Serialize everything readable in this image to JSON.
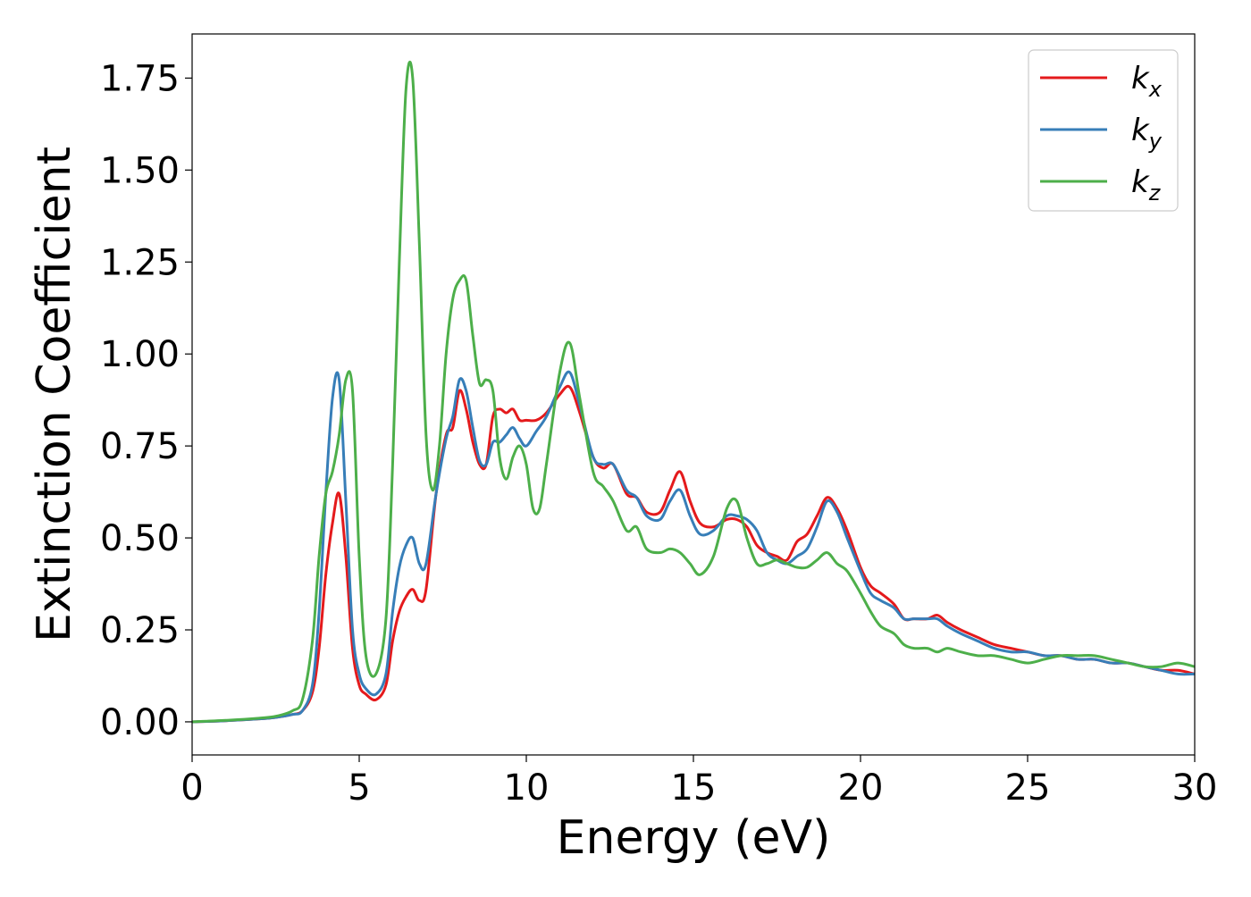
{
  "chart_data": {
    "type": "line",
    "title": "",
    "xlabel": "Energy (eV)",
    "ylabel": "Extinction Coefficient",
    "xlim": [
      0,
      30
    ],
    "ylim": [
      -0.09,
      1.87
    ],
    "xticks": [
      0,
      5,
      10,
      15,
      20,
      25,
      30
    ],
    "xtick_labels": [
      "0",
      "5",
      "10",
      "15",
      "20",
      "25",
      "30"
    ],
    "yticks": [
      0.0,
      0.25,
      0.5,
      0.75,
      1.0,
      1.25,
      1.5,
      1.75
    ],
    "ytick_labels": [
      "0.00",
      "0.25",
      "0.50",
      "0.75",
      "1.00",
      "1.25",
      "1.50",
      "1.75"
    ],
    "grid": false,
    "legend_position": "top-right",
    "series": [
      {
        "name": "k",
        "subscript": "x",
        "color": "#e41a1c",
        "x": [
          0,
          1,
          2,
          2.5,
          3,
          3.3,
          3.6,
          3.8,
          4.0,
          4.2,
          4.4,
          4.6,
          4.8,
          5.0,
          5.2,
          5.5,
          5.8,
          6.0,
          6.2,
          6.4,
          6.6,
          6.8,
          7.0,
          7.3,
          7.6,
          7.8,
          8.0,
          8.2,
          8.4,
          8.6,
          8.8,
          9.0,
          9.2,
          9.4,
          9.6,
          9.8,
          10.0,
          10.3,
          10.6,
          11.0,
          11.3,
          11.6,
          12.0,
          12.3,
          12.6,
          13.0,
          13.3,
          13.6,
          14.0,
          14.3,
          14.6,
          14.9,
          15.2,
          15.6,
          16.0,
          16.3,
          16.6,
          16.9,
          17.2,
          17.5,
          17.8,
          18.1,
          18.4,
          18.7,
          19.0,
          19.3,
          19.6,
          20.0,
          20.3,
          20.6,
          21.0,
          21.3,
          21.6,
          22.0,
          22.3,
          22.6,
          23.0,
          23.5,
          24.0,
          24.5,
          25.0,
          25.5,
          26.0,
          26.5,
          27.0,
          27.5,
          28.0,
          28.5,
          29.0,
          29.5,
          30.0
        ],
        "y": [
          0.0,
          0.003,
          0.008,
          0.012,
          0.02,
          0.03,
          0.08,
          0.2,
          0.4,
          0.54,
          0.62,
          0.45,
          0.2,
          0.1,
          0.075,
          0.06,
          0.1,
          0.22,
          0.3,
          0.34,
          0.36,
          0.33,
          0.36,
          0.62,
          0.78,
          0.8,
          0.9,
          0.85,
          0.76,
          0.7,
          0.7,
          0.83,
          0.85,
          0.84,
          0.85,
          0.82,
          0.82,
          0.82,
          0.84,
          0.89,
          0.91,
          0.84,
          0.72,
          0.69,
          0.7,
          0.62,
          0.61,
          0.57,
          0.57,
          0.63,
          0.68,
          0.6,
          0.54,
          0.53,
          0.55,
          0.55,
          0.53,
          0.48,
          0.46,
          0.45,
          0.44,
          0.49,
          0.51,
          0.56,
          0.61,
          0.58,
          0.52,
          0.42,
          0.37,
          0.35,
          0.32,
          0.28,
          0.28,
          0.28,
          0.29,
          0.27,
          0.25,
          0.23,
          0.21,
          0.2,
          0.19,
          0.18,
          0.18,
          0.17,
          0.17,
          0.16,
          0.16,
          0.15,
          0.14,
          0.14,
          0.13
        ]
      },
      {
        "name": "k",
        "subscript": "y",
        "color": "#377eb8",
        "x": [
          0,
          1,
          2,
          2.5,
          3,
          3.3,
          3.6,
          3.8,
          4.0,
          4.2,
          4.4,
          4.6,
          4.8,
          5.0,
          5.2,
          5.5,
          5.8,
          6.0,
          6.2,
          6.4,
          6.6,
          6.8,
          7.0,
          7.3,
          7.6,
          7.8,
          8.0,
          8.2,
          8.4,
          8.6,
          8.8,
          9.0,
          9.2,
          9.4,
          9.6,
          9.8,
          10.0,
          10.3,
          10.6,
          11.0,
          11.3,
          11.6,
          12.0,
          12.3,
          12.6,
          13.0,
          13.3,
          13.6,
          14.0,
          14.3,
          14.6,
          14.9,
          15.2,
          15.6,
          16.0,
          16.3,
          16.6,
          16.9,
          17.2,
          17.5,
          17.8,
          18.1,
          18.4,
          18.7,
          19.0,
          19.3,
          19.6,
          20.0,
          20.3,
          20.6,
          21.0,
          21.3,
          21.6,
          22.0,
          22.3,
          22.6,
          23.0,
          23.5,
          24.0,
          24.5,
          25.0,
          25.5,
          26.0,
          26.5,
          27.0,
          27.5,
          28.0,
          28.5,
          29.0,
          29.5,
          30.0
        ],
        "y": [
          0.0,
          0.003,
          0.008,
          0.012,
          0.02,
          0.03,
          0.1,
          0.3,
          0.62,
          0.88,
          0.93,
          0.6,
          0.25,
          0.13,
          0.09,
          0.075,
          0.13,
          0.3,
          0.42,
          0.48,
          0.5,
          0.43,
          0.43,
          0.62,
          0.77,
          0.83,
          0.93,
          0.9,
          0.8,
          0.71,
          0.7,
          0.76,
          0.76,
          0.78,
          0.8,
          0.77,
          0.75,
          0.79,
          0.83,
          0.91,
          0.95,
          0.86,
          0.72,
          0.7,
          0.7,
          0.63,
          0.61,
          0.56,
          0.55,
          0.6,
          0.63,
          0.56,
          0.51,
          0.52,
          0.56,
          0.56,
          0.55,
          0.52,
          0.46,
          0.44,
          0.43,
          0.45,
          0.47,
          0.53,
          0.6,
          0.57,
          0.5,
          0.41,
          0.35,
          0.33,
          0.31,
          0.28,
          0.28,
          0.28,
          0.28,
          0.26,
          0.24,
          0.22,
          0.2,
          0.19,
          0.19,
          0.18,
          0.18,
          0.17,
          0.17,
          0.16,
          0.16,
          0.15,
          0.14,
          0.13,
          0.13
        ]
      },
      {
        "name": "k",
        "subscript": "z",
        "color": "#4daf4a",
        "x": [
          0,
          1,
          2,
          2.5,
          3,
          3.3,
          3.6,
          3.8,
          4.0,
          4.2,
          4.4,
          4.6,
          4.8,
          5.0,
          5.2,
          5.5,
          5.8,
          6.0,
          6.2,
          6.4,
          6.6,
          6.8,
          7.0,
          7.2,
          7.4,
          7.6,
          7.8,
          8.0,
          8.2,
          8.4,
          8.6,
          8.8,
          9.0,
          9.2,
          9.4,
          9.6,
          9.8,
          10.0,
          10.2,
          10.4,
          10.6,
          11.0,
          11.3,
          11.6,
          12.0,
          12.3,
          12.6,
          13.0,
          13.3,
          13.6,
          14.0,
          14.3,
          14.6,
          14.9,
          15.2,
          15.6,
          16.0,
          16.3,
          16.6,
          16.9,
          17.2,
          17.5,
          17.8,
          18.1,
          18.4,
          18.7,
          19.0,
          19.3,
          19.6,
          20.0,
          20.3,
          20.6,
          21.0,
          21.3,
          21.6,
          22.0,
          22.3,
          22.6,
          23.0,
          23.5,
          24.0,
          24.5,
          25.0,
          25.5,
          26.0,
          26.5,
          27.0,
          27.5,
          28.0,
          28.5,
          29.0,
          29.5,
          30.0
        ],
        "y": [
          0.0,
          0.004,
          0.01,
          0.015,
          0.03,
          0.06,
          0.22,
          0.45,
          0.62,
          0.68,
          0.78,
          0.93,
          0.9,
          0.45,
          0.18,
          0.13,
          0.28,
          0.7,
          1.25,
          1.72,
          1.75,
          1.3,
          0.78,
          0.63,
          0.75,
          1.0,
          1.15,
          1.2,
          1.2,
          1.05,
          0.92,
          0.93,
          0.9,
          0.72,
          0.66,
          0.72,
          0.75,
          0.7,
          0.58,
          0.58,
          0.7,
          0.95,
          1.03,
          0.88,
          0.68,
          0.64,
          0.6,
          0.52,
          0.53,
          0.47,
          0.46,
          0.47,
          0.46,
          0.43,
          0.4,
          0.45,
          0.58,
          0.6,
          0.5,
          0.43,
          0.43,
          0.44,
          0.43,
          0.42,
          0.42,
          0.44,
          0.46,
          0.43,
          0.41,
          0.35,
          0.3,
          0.26,
          0.24,
          0.21,
          0.2,
          0.2,
          0.19,
          0.2,
          0.19,
          0.18,
          0.18,
          0.17,
          0.16,
          0.17,
          0.18,
          0.18,
          0.18,
          0.17,
          0.16,
          0.15,
          0.15,
          0.16,
          0.15
        ]
      }
    ]
  }
}
